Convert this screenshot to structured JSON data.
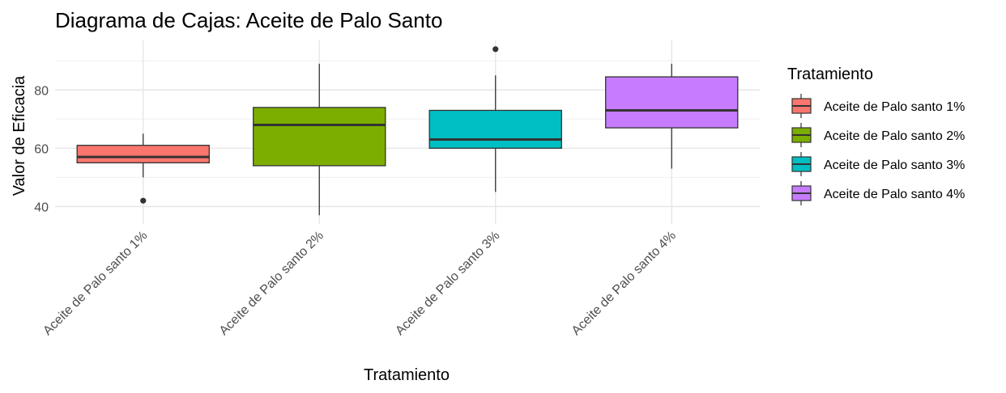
{
  "chart_data": {
    "type": "boxplot",
    "title": "Diagrama de Cajas: Aceite de Palo Santo",
    "xlabel": "Tratamiento",
    "ylabel": "Valor de Eficacia",
    "ylim": [
      34,
      97
    ],
    "yticks": [
      40,
      60,
      80
    ],
    "grid": true,
    "legend": {
      "title": "Tratamiento",
      "position": "right"
    },
    "categories": [
      "Aceite de Palo santo 1%",
      "Aceite de Palo santo 2%",
      "Aceite de Palo santo 3%",
      "Aceite de Palo santo 4%"
    ],
    "series": [
      {
        "name": "Aceite de Palo santo 1%",
        "color": "#F8766D",
        "whisker_low": 50,
        "q1": 55,
        "median": 57,
        "q3": 61,
        "whisker_high": 65,
        "outliers": [
          42
        ]
      },
      {
        "name": "Aceite de Palo santo 2%",
        "color": "#7CAE00",
        "whisker_low": 37,
        "q1": 54,
        "median": 68,
        "q3": 74,
        "whisker_high": 89,
        "outliers": []
      },
      {
        "name": "Aceite de Palo santo 3%",
        "color": "#00BFC4",
        "whisker_low": 45,
        "q1": 60,
        "median": 63,
        "q3": 73,
        "whisker_high": 85,
        "outliers": [
          94
        ]
      },
      {
        "name": "Aceite de Palo santo 4%",
        "color": "#C77CFF",
        "whisker_low": 53,
        "q1": 67,
        "median": 73,
        "q3": 84.5,
        "whisker_high": 89,
        "outliers": []
      }
    ]
  }
}
